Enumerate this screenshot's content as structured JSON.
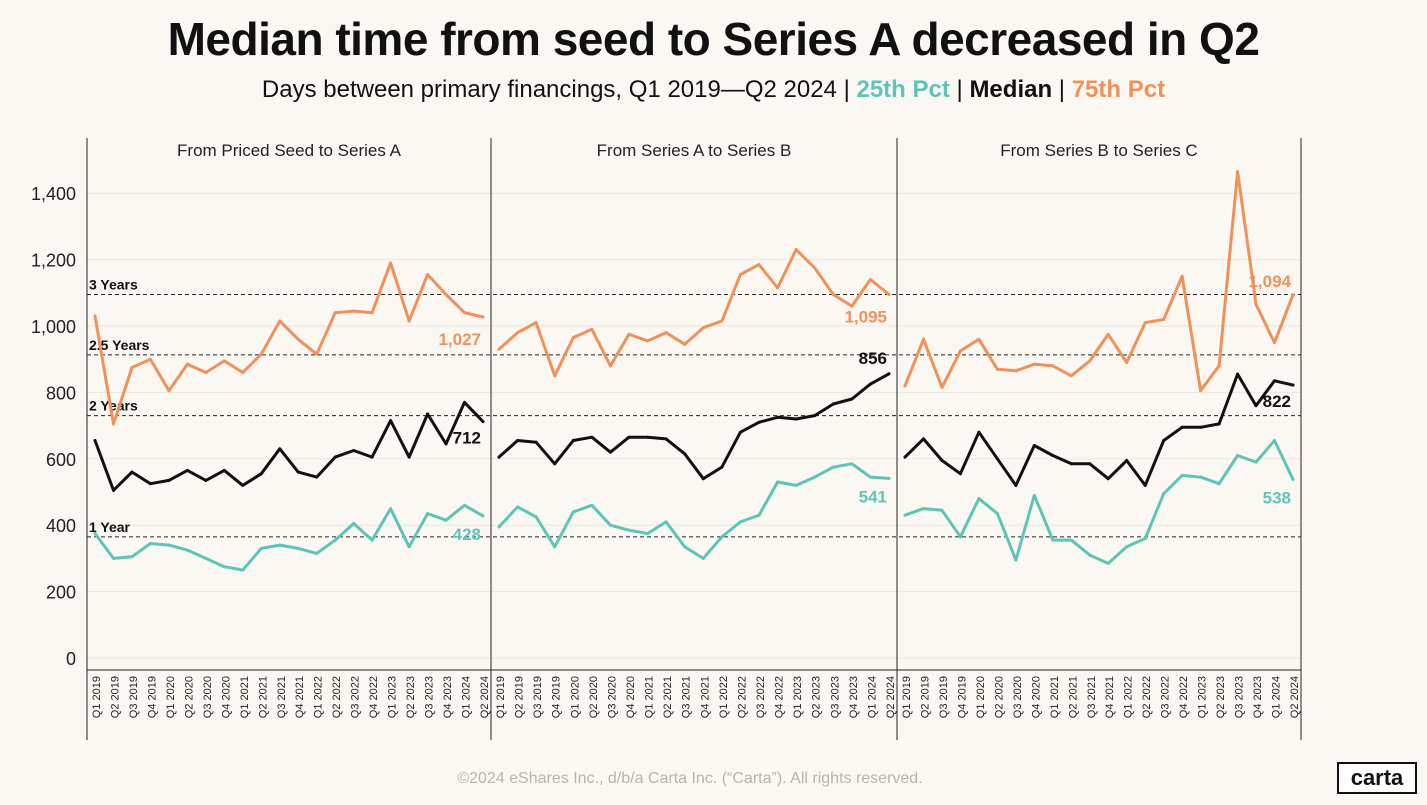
{
  "title": "Median time from seed to Series A decreased in Q2",
  "subtitle": {
    "prefix": "Days between primary financings, Q1 2019—Q2 2024",
    "sep": "|",
    "p25": "25th Pct",
    "median": "Median",
    "p75": "75th Pct"
  },
  "footer": "©2024 eShares Inc., d/b/a Carta Inc. (“Carta”). All rights reserved.",
  "logo": "carta",
  "colors": {
    "p25": "#5fc4b8",
    "median": "#111111",
    "p75": "#f0915a",
    "background": "#fbf8f3"
  },
  "chart_data": {
    "type": "line",
    "ylim": [
      0,
      1500
    ],
    "yticks": [
      0,
      200,
      400,
      600,
      800,
      1000,
      1200,
      1400
    ],
    "ytick_labels": [
      "0",
      "200",
      "400",
      "600",
      "800",
      "1,000",
      "1,200",
      "1,400"
    ],
    "reference_lines": [
      {
        "label": "3 Years",
        "value": 1095
      },
      {
        "label": "2.5 Years",
        "value": 913
      },
      {
        "label": "2 Years",
        "value": 730
      },
      {
        "label": "1 Year",
        "value": 365
      }
    ],
    "categories": [
      "Q1 2019",
      "Q2 2019",
      "Q3 2019",
      "Q4 2019",
      "Q1 2020",
      "Q2 2020",
      "Q3 2020",
      "Q4 2020",
      "Q1 2021",
      "Q2 2021",
      "Q3 2021",
      "Q4 2021",
      "Q1 2022",
      "Q2 2022",
      "Q3 2022",
      "Q4 2022",
      "Q1 2023",
      "Q2 2023",
      "Q3 2023",
      "Q4 2023",
      "Q1 2024",
      "Q2 2024"
    ],
    "panels": [
      {
        "title": "From Priced Seed to Series A",
        "series": [
          {
            "name": "75th Pct",
            "values": [
              1030,
              705,
              875,
              900,
              805,
              885,
              860,
              895,
              860,
              915,
              1015,
              960,
              915,
              1040,
              1045,
              1040,
              1190,
              1015,
              1155,
              1095,
              1040,
              1027
            ]
          },
          {
            "name": "Median",
            "values": [
              655,
              505,
              560,
              525,
              535,
              565,
              535,
              565,
              520,
              555,
              630,
              560,
              545,
              605,
              625,
              605,
              715,
              605,
              735,
              645,
              770,
              712
            ]
          },
          {
            "name": "25th Pct",
            "values": [
              375,
              300,
              305,
              345,
              340,
              325,
              300,
              275,
              265,
              330,
              340,
              330,
              315,
              355,
              405,
              355,
              450,
              335,
              435,
              415,
              460,
              428
            ]
          }
        ],
        "end_labels": {
          "p75": "1,027",
          "median": "712",
          "p25": "428"
        }
      },
      {
        "title": "From Series A to Series B",
        "series": [
          {
            "name": "75th Pct",
            "values": [
              930,
              980,
              1010,
              850,
              965,
              990,
              880,
              975,
              955,
              980,
              945,
              995,
              1015,
              1155,
              1185,
              1115,
              1230,
              1175,
              1095,
              1060,
              1140,
              1095
            ]
          },
          {
            "name": "Median",
            "values": [
              605,
              655,
              650,
              585,
              655,
              665,
              620,
              665,
              665,
              660,
              615,
              540,
              575,
              680,
              710,
              725,
              720,
              730,
              765,
              780,
              825,
              856
            ]
          },
          {
            "name": "25th Pct",
            "values": [
              395,
              455,
              425,
              335,
              440,
              460,
              400,
              385,
              375,
              410,
              335,
              300,
              365,
              410,
              430,
              530,
              520,
              545,
              575,
              585,
              545,
              541
            ]
          }
        ],
        "end_labels": {
          "p75": "1,095",
          "median": "856",
          "p25": "541"
        }
      },
      {
        "title": "From Series B to Series C",
        "series": [
          {
            "name": "75th Pct",
            "values": [
              820,
              960,
              815,
              925,
              960,
              870,
              865,
              885,
              880,
              850,
              895,
              975,
              890,
              1010,
              1020,
              1150,
              805,
              880,
              1465,
              1065,
              950,
              1094
            ]
          },
          {
            "name": "Median",
            "values": [
              605,
              660,
              595,
              555,
              680,
              600,
              520,
              640,
              610,
              585,
              585,
              540,
              595,
              520,
              655,
              695,
              695,
              705,
              855,
              760,
              835,
              822
            ]
          },
          {
            "name": "25th Pct",
            "values": [
              430,
              450,
              445,
              365,
              480,
              435,
              295,
              490,
              355,
              355,
              310,
              285,
              335,
              360,
              495,
              550,
              545,
              525,
              610,
              590,
              655,
              538
            ]
          }
        ],
        "end_labels": {
          "p75": "1,094",
          "median": "822",
          "p25": "538"
        }
      }
    ]
  }
}
